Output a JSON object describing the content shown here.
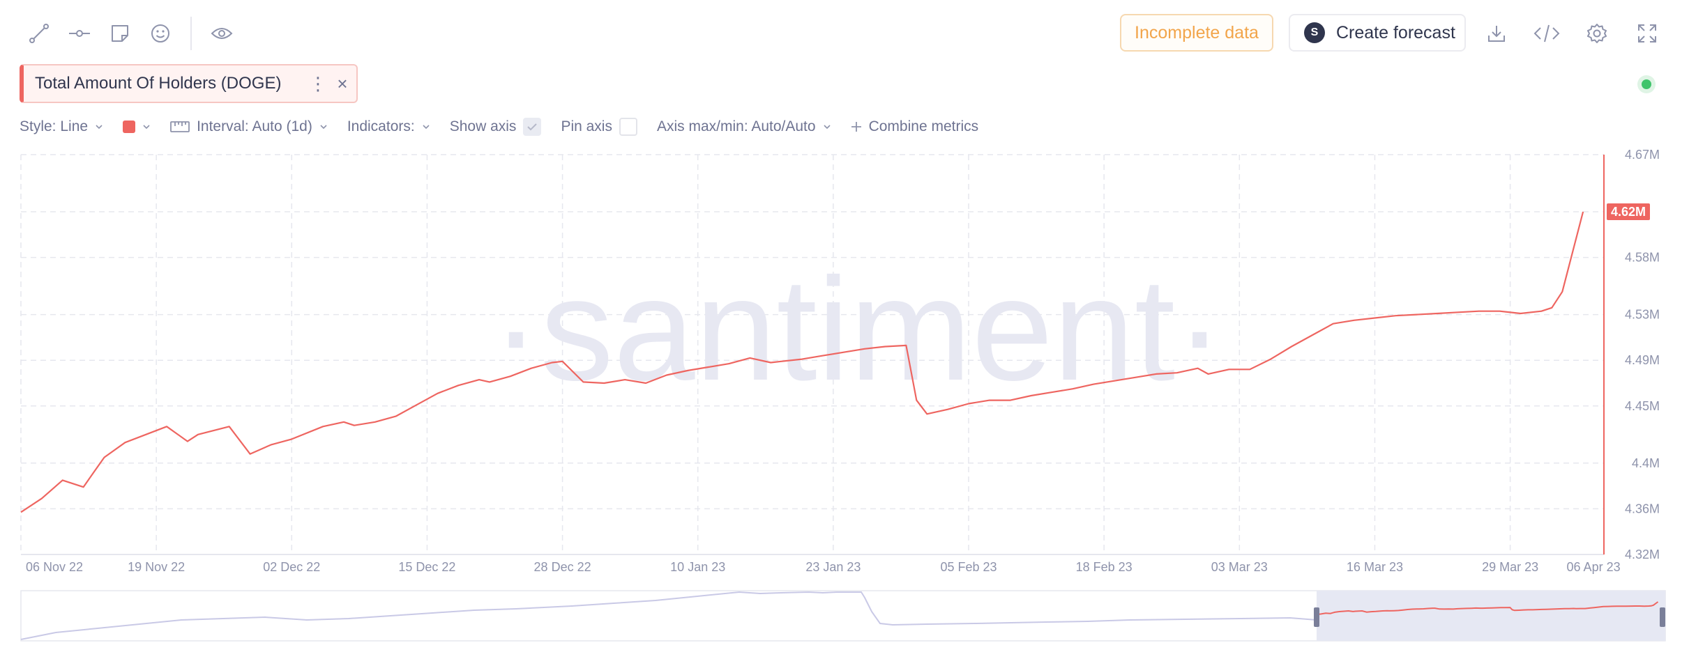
{
  "toolbar": {
    "tools": [
      "line-tool-icon",
      "horizontal-ray-icon",
      "note-icon",
      "emoji-icon"
    ],
    "visibility_icon": "eye-icon",
    "incomplete_label": "Incomplete data",
    "forecast_label": "Create forecast",
    "forecast_logo": "S",
    "right_icons": [
      "download-icon",
      "embed-code-icon",
      "settings-gear-icon",
      "fullscreen-icon"
    ]
  },
  "metric": {
    "label": "Total Amount Of Holders (DOGE)",
    "more": "⋮",
    "close": "×",
    "color": "#ee6560"
  },
  "settings": {
    "style": "Style: Line",
    "interval": "Interval: Auto (1d)",
    "indicators": "Indicators:",
    "show_axis": "Show axis",
    "show_axis_checked": true,
    "pin_axis": "Pin axis",
    "pin_axis_checked": false,
    "axis_maxmin": "Axis max/min: Auto/Auto",
    "combine": "Combine metrics"
  },
  "watermark": "·santiment·",
  "chart_data": {
    "type": "line",
    "series": [
      {
        "name": "Total Amount Of Holders (DOGE)",
        "color": "#ee6560",
        "x": [
          "2022-11-06",
          "2022-11-08",
          "2022-11-10",
          "2022-11-12",
          "2022-11-13",
          "2022-11-14",
          "2022-11-16",
          "2022-11-18",
          "2022-11-20",
          "2022-11-22",
          "2022-11-23",
          "2022-11-26",
          "2022-11-28",
          "2022-11-30",
          "2022-12-02",
          "2022-12-05",
          "2022-12-07",
          "2022-12-08",
          "2022-12-10",
          "2022-12-12",
          "2022-12-14",
          "2022-12-16",
          "2022-12-18",
          "2022-12-20",
          "2022-12-21",
          "2022-12-23",
          "2022-12-25",
          "2022-12-27",
          "2022-12-28",
          "2022-12-30",
          "2023-01-01",
          "2023-01-03",
          "2023-01-05",
          "2023-01-07",
          "2023-01-09",
          "2023-01-11",
          "2023-01-13",
          "2023-01-15",
          "2023-01-17",
          "2023-01-18",
          "2023-01-20",
          "2023-01-22",
          "2023-01-24",
          "2023-01-26",
          "2023-01-28",
          "2023-01-30",
          "2023-01-31",
          "2023-02-01",
          "2023-02-03",
          "2023-02-05",
          "2023-02-07",
          "2023-02-09",
          "2023-02-11",
          "2023-02-13",
          "2023-02-15",
          "2023-02-17",
          "2023-02-19",
          "2023-02-21",
          "2023-02-23",
          "2023-02-25",
          "2023-02-27",
          "2023-02-28",
          "2023-03-02",
          "2023-03-04",
          "2023-03-06",
          "2023-03-08",
          "2023-03-10",
          "2023-03-12",
          "2023-03-14",
          "2023-03-16",
          "2023-03-18",
          "2023-03-20",
          "2023-03-22",
          "2023-03-24",
          "2023-03-26",
          "2023-03-28",
          "2023-03-30",
          "2023-04-01",
          "2023-04-02",
          "2023-04-03",
          "2023-04-05"
        ],
        "values": [
          4.357,
          4.369,
          4.385,
          4.379,
          4.392,
          4.405,
          4.418,
          4.425,
          4.432,
          4.419,
          4.425,
          4.432,
          4.408,
          4.416,
          4.421,
          4.432,
          4.436,
          4.433,
          4.436,
          4.441,
          4.451,
          4.461,
          4.468,
          4.473,
          4.471,
          4.476,
          4.483,
          4.488,
          4.489,
          4.471,
          4.47,
          4.473,
          4.47,
          4.477,
          4.481,
          4.484,
          4.487,
          4.492,
          4.488,
          4.489,
          4.491,
          4.494,
          4.497,
          4.5,
          4.502,
          4.503,
          4.455,
          4.443,
          4.447,
          4.452,
          4.455,
          4.455,
          4.459,
          4.462,
          4.465,
          4.469,
          4.472,
          4.475,
          4.478,
          4.479,
          4.483,
          4.478,
          4.482,
          4.482,
          4.491,
          4.502,
          4.512,
          4.522,
          4.525,
          4.527,
          4.529,
          4.53,
          4.531,
          4.532,
          4.533,
          4.533,
          4.531,
          4.533,
          4.536,
          4.55,
          4.62
        ]
      }
    ],
    "x_ticks": [
      "06 Nov 22",
      "19 Nov 22",
      "02 Dec 22",
      "15 Dec 22",
      "28 Dec 22",
      "10 Jan 23",
      "23 Jan 23",
      "05 Feb 23",
      "18 Feb 23",
      "03 Mar 23",
      "16 Mar 23",
      "29 Mar 23",
      "06 Apr 23"
    ],
    "y_ticks": [
      "4.67M",
      "4.62M",
      "4.58M",
      "4.53M",
      "4.49M",
      "4.45M",
      "4.4M",
      "4.36M",
      "4.32M"
    ],
    "y_tick_values": [
      4.67,
      4.62,
      4.58,
      4.53,
      4.49,
      4.45,
      4.4,
      4.36,
      4.32
    ],
    "ylim": [
      4.32,
      4.67
    ],
    "xlim": [
      "2022-11-06",
      "2023-04-07"
    ],
    "last_value_label": "4.62M",
    "grid": true,
    "navigator": {
      "selected_range": [
        "2022-11-06",
        "2023-04-07"
      ]
    }
  }
}
